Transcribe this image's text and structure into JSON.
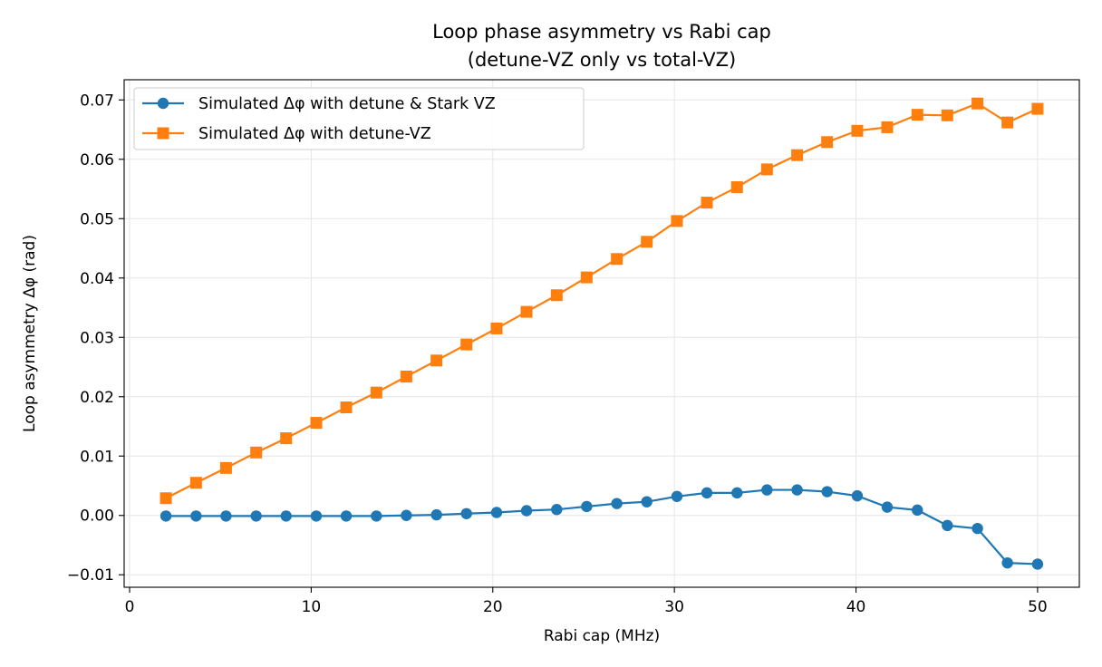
{
  "chart_data": {
    "type": "line",
    "title_line1": "Loop phase asymmetry vs Rabi cap",
    "title_line2": "(detune-VZ only vs total-VZ)",
    "xlabel": "Rabi cap (MHz)",
    "ylabel": "Loop asymmetry Δφ (rad)",
    "xlim": [
      -0.3,
      52.3
    ],
    "ylim": [
      -0.0121,
      0.0734
    ],
    "xticks": [
      0,
      10,
      20,
      30,
      40,
      50
    ],
    "xtick_labels": [
      "0",
      "10",
      "20",
      "30",
      "40",
      "50"
    ],
    "yticks": [
      -0.01,
      0.0,
      0.01,
      0.02,
      0.03,
      0.04,
      0.05,
      0.06,
      0.07
    ],
    "ytick_labels": [
      "−0.01",
      "0.00",
      "0.01",
      "0.02",
      "0.03",
      "0.04",
      "0.05",
      "0.06",
      "0.07"
    ],
    "grid": true,
    "legend_position": "upper-left",
    "x": [
      2.0,
      3.66,
      5.31,
      6.97,
      8.62,
      10.28,
      11.93,
      13.59,
      15.24,
      16.9,
      18.55,
      20.21,
      21.86,
      23.52,
      25.17,
      26.83,
      28.48,
      30.14,
      31.79,
      33.45,
      35.1,
      36.76,
      38.41,
      40.07,
      41.72,
      43.38,
      45.03,
      46.69,
      48.34,
      50.0
    ],
    "series": [
      {
        "name": "Simulated Δφ with detune & Stark VZ",
        "color": "#1f77b4",
        "marker": "circle",
        "values": [
          -0.0001,
          -0.0001,
          -0.0001,
          -0.0001,
          -0.0001,
          -0.0001,
          -0.0001,
          -0.0001,
          0.0,
          0.0001,
          0.0003,
          0.0005,
          0.0008,
          0.001,
          0.0015,
          0.002,
          0.0023,
          0.0032,
          0.0038,
          0.0038,
          0.0043,
          0.0043,
          0.004,
          0.0033,
          0.0014,
          0.0009,
          -0.0017,
          -0.0022,
          -0.008,
          -0.0082
        ]
      },
      {
        "name": "Simulated Δφ with detune-VZ",
        "color": "#ff7f0e",
        "marker": "square",
        "values": [
          0.0029,
          0.0055,
          0.008,
          0.0106,
          0.013,
          0.0156,
          0.0182,
          0.0207,
          0.0234,
          0.0261,
          0.0288,
          0.0315,
          0.0343,
          0.0371,
          0.0401,
          0.0432,
          0.0461,
          0.0496,
          0.0527,
          0.0553,
          0.0583,
          0.0607,
          0.0629,
          0.0648,
          0.0654,
          0.0675,
          0.0674,
          0.0694,
          0.0662,
          0.0685
        ]
      }
    ]
  }
}
